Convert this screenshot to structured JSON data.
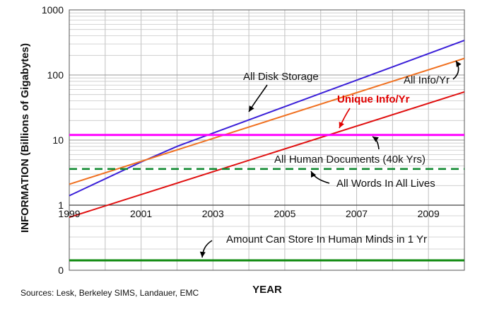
{
  "chart_data": {
    "type": "line",
    "xlabel": "YEAR",
    "ylabel": "INFORMATION (Billions of Gigabytes)",
    "source": "Sources: Lesk, Berkeley SIMS, Landauer, EMC",
    "x_range": [
      1999,
      2010
    ],
    "y_scale": "log",
    "y_range": [
      1,
      1000
    ],
    "x_ticks": [
      "1999",
      "2001",
      "2003",
      "2005",
      "2007",
      "2009"
    ],
    "y_ticks": [
      "1",
      "10",
      "100",
      "1000"
    ],
    "lower_panel_tick": "0",
    "grid": true,
    "series": [
      {
        "name": "All Disk Storage",
        "color": "#3a1fd8",
        "style": "solid",
        "x": [
          1999,
          2001,
          2002,
          2010
        ],
        "y": [
          1.4,
          4.6,
          8,
          340
        ]
      },
      {
        "name": "All Info/Yr",
        "color": "#f07020",
        "style": "solid",
        "x": [
          1999,
          2010
        ],
        "y": [
          2.1,
          180
        ]
      },
      {
        "name": "Unique Info/Yr",
        "color": "#e01010",
        "style": "solid",
        "x": [
          1999,
          2010
        ],
        "y": [
          0.65,
          55
        ]
      },
      {
        "name": "All Human Documents (40k Yrs)",
        "color": "#ff00ff",
        "style": "solid",
        "x": [
          1999,
          2010
        ],
        "y": [
          12,
          12
        ]
      },
      {
        "name": "All Words In All Lives",
        "color": "#108a30",
        "style": "dashed",
        "x": [
          1999,
          2010
        ],
        "y": [
          3.6,
          3.6
        ]
      },
      {
        "name": "Amount Can Store In Human Minds in 1 Yr",
        "color": "#108a10",
        "style": "solid",
        "panel": "lower"
      }
    ]
  }
}
